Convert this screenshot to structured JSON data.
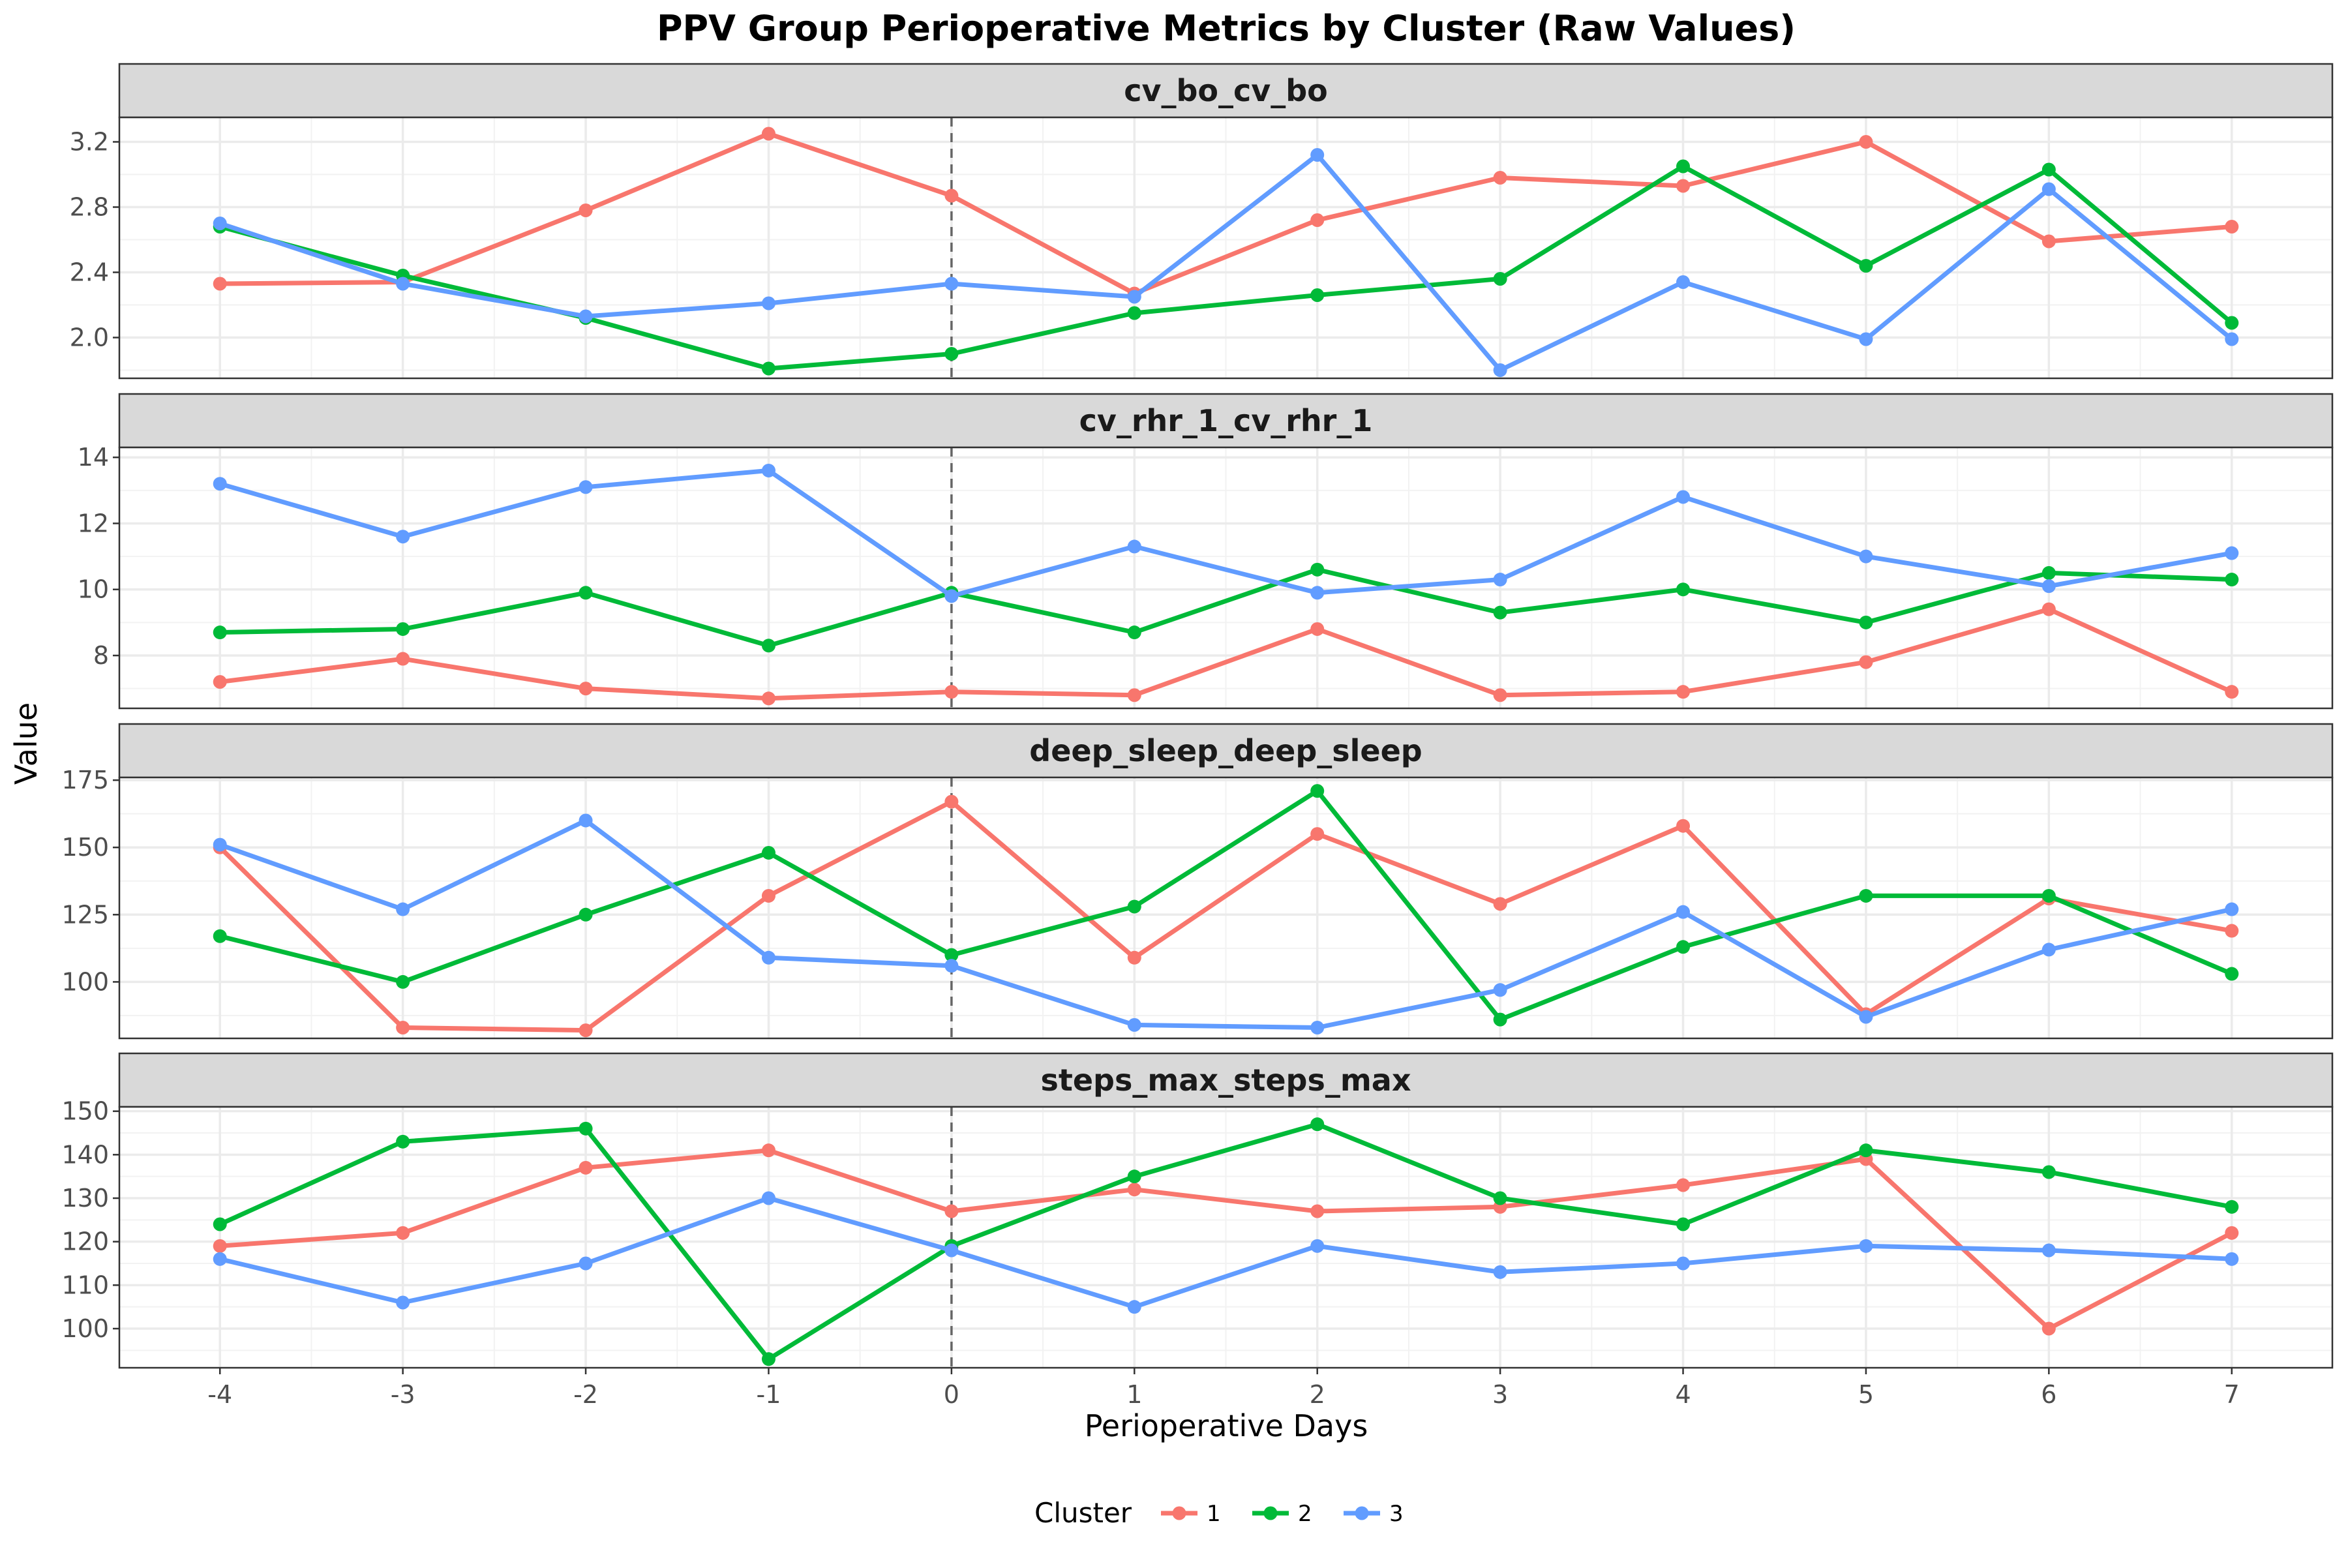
{
  "chart_data": {
    "type": "line",
    "title": "PPV Group Perioperative Metrics by Cluster (Raw Values)",
    "xlabel": "Perioperative Days",
    "ylabel": "Value",
    "x": [
      -4,
      -3,
      -2,
      -1,
      0,
      1,
      2,
      3,
      4,
      5,
      6,
      7
    ],
    "x_ticks": [
      "-4",
      "-3",
      "-2",
      "-1",
      "0",
      "1",
      "2",
      "3",
      "4",
      "5",
      "6",
      "7"
    ],
    "xlim": [
      -4.55,
      7.55
    ],
    "vline_x": 0,
    "grid": true,
    "legend": {
      "title": "Cluster",
      "position": "bottom",
      "entries": [
        {
          "label": "1",
          "color": "#F8766D"
        },
        {
          "label": "2",
          "color": "#00BA38"
        },
        {
          "label": "3",
          "color": "#619CFF"
        }
      ]
    },
    "panels": [
      {
        "strip": "cv_bo_cv_bo",
        "ylim": [
          1.75,
          3.35
        ],
        "yticks": [
          2.0,
          2.4,
          2.8,
          3.2
        ],
        "ytick_labels": [
          "2.0",
          "2.4",
          "2.8",
          "3.2"
        ],
        "series": [
          {
            "name": "1",
            "values": [
              2.33,
              2.34,
              2.78,
              3.25,
              2.87,
              2.27,
              2.72,
              2.98,
              2.93,
              3.2,
              2.59,
              2.68
            ]
          },
          {
            "name": "2",
            "values": [
              2.68,
              2.38,
              2.12,
              1.81,
              1.9,
              2.15,
              2.26,
              2.36,
              3.05,
              2.44,
              3.03,
              2.09
            ]
          },
          {
            "name": "3",
            "values": [
              2.7,
              2.33,
              2.13,
              2.21,
              2.33,
              2.25,
              3.12,
              1.8,
              2.34,
              1.99,
              2.91,
              1.99
            ]
          }
        ]
      },
      {
        "strip": "cv_rhr_1_cv_rhr_1",
        "ylim": [
          6.4,
          14.3
        ],
        "yticks": [
          8,
          10,
          12,
          14
        ],
        "ytick_labels": [
          "8",
          "10",
          "12",
          "14"
        ],
        "series": [
          {
            "name": "1",
            "values": [
              7.2,
              7.9,
              7.0,
              6.7,
              6.9,
              6.8,
              8.8,
              6.8,
              6.9,
              7.8,
              9.4,
              6.9
            ]
          },
          {
            "name": "2",
            "values": [
              8.7,
              8.8,
              9.9,
              8.3,
              9.9,
              8.7,
              10.6,
              9.3,
              10.0,
              9.0,
              10.5,
              10.3
            ]
          },
          {
            "name": "3",
            "values": [
              13.2,
              11.6,
              13.1,
              13.6,
              9.8,
              11.3,
              9.9,
              10.3,
              12.8,
              11.0,
              10.1,
              11.1
            ]
          }
        ]
      },
      {
        "strip": "deep_sleep_deep_sleep",
        "ylim": [
          79,
          176
        ],
        "yticks": [
          100,
          125,
          150,
          175
        ],
        "ytick_labels": [
          "100",
          "125",
          "150",
          "175"
        ],
        "series": [
          {
            "name": "1",
            "values": [
              150,
              83,
              82,
              132,
              167,
              109,
              155,
              129,
              158,
              88,
              131,
              119
            ]
          },
          {
            "name": "2",
            "values": [
              117,
              100,
              125,
              148,
              110,
              128,
              171,
              86,
              113,
              132,
              132,
              103
            ]
          },
          {
            "name": "3",
            "values": [
              151,
              127,
              160,
              109,
              106,
              84,
              83,
              97,
              126,
              87,
              112,
              127
            ]
          }
        ]
      },
      {
        "strip": "steps_max_steps_max",
        "ylim": [
          91,
          151
        ],
        "yticks": [
          100,
          110,
          120,
          130,
          140,
          150
        ],
        "ytick_labels": [
          "100",
          "110",
          "120",
          "130",
          "140",
          "150"
        ],
        "series": [
          {
            "name": "1",
            "values": [
              119,
              122,
              137,
              141,
              127,
              132,
              127,
              128,
              133,
              139,
              100,
              122
            ]
          },
          {
            "name": "2",
            "values": [
              124,
              143,
              146,
              93,
              119,
              135,
              147,
              130,
              124,
              141,
              136,
              128
            ]
          },
          {
            "name": "3",
            "values": [
              116,
              106,
              115,
              130,
              118,
              105,
              119,
              113,
              115,
              119,
              118,
              116
            ]
          }
        ]
      }
    ]
  }
}
